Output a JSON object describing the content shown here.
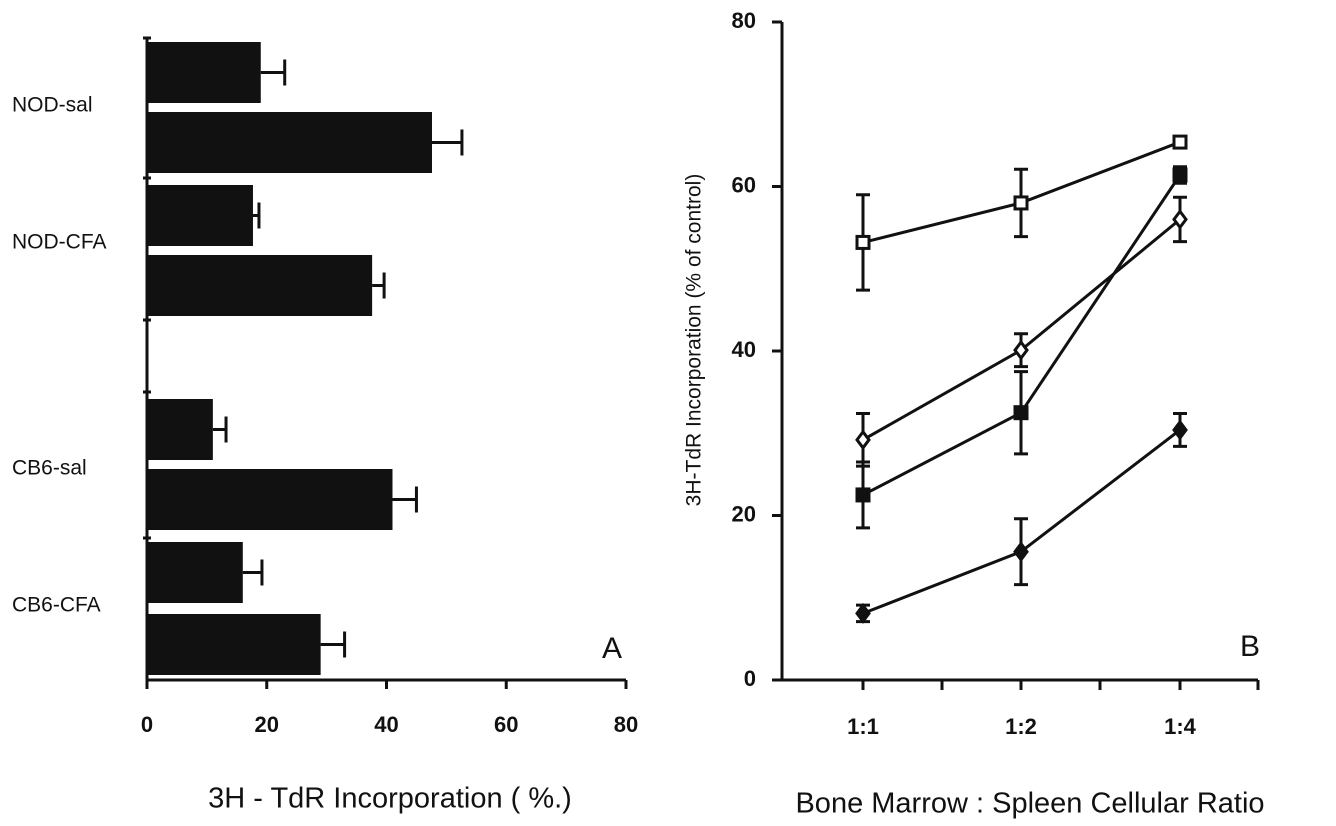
{
  "chart_data": [
    {
      "type": "hbar",
      "xlabel": "3H - TdR Incorporation ( %.)",
      "annotation": "A",
      "categories": [
        "NOD-sal",
        "NOD-CFA",
        "CB6-sal",
        "CB6-CFA"
      ],
      "series": [
        {
          "color": "#111111",
          "values": [
            19,
            17.7,
            11,
            16
          ],
          "errors": [
            4,
            1,
            2.2,
            3.2
          ]
        },
        {
          "color": "#111111",
          "values": [
            47.6,
            37.6,
            41,
            29
          ],
          "errors": [
            5,
            2,
            4,
            4
          ]
        }
      ],
      "xlim": [
        0,
        80
      ],
      "xticks": [
        0,
        20,
        40,
        60,
        80
      ]
    },
    {
      "type": "line",
      "ylabel": "3H-TdR Incorporation (% of control)",
      "xlabel": "Bone Marrow : Spleen Cellular Ratio",
      "annotation": "B",
      "categories": [
        "1:1",
        "1:2",
        "1:4"
      ],
      "series": [
        {
          "color": "#111111",
          "marker": "square",
          "filled": false,
          "values": [
            53.2,
            58,
            65.4
          ],
          "errors": [
            5.8,
            4.1,
            0.5
          ]
        },
        {
          "color": "#111111",
          "marker": "square",
          "filled": true,
          "values": [
            22.5,
            32.5,
            61.4
          ],
          "errors": [
            4,
            5,
            1
          ]
        },
        {
          "color": "#111111",
          "marker": "diamond",
          "filled": false,
          "values": [
            29.2,
            40.1,
            56
          ],
          "errors": [
            3.2,
            2,
            2.7
          ]
        },
        {
          "color": "#111111",
          "marker": "diamond",
          "filled": true,
          "values": [
            8.1,
            15.6,
            30.4
          ],
          "errors": [
            1,
            4,
            2
          ]
        }
      ],
      "ylim": [
        0,
        80
      ],
      "yticks": [
        0,
        20,
        40,
        60,
        80
      ]
    }
  ]
}
